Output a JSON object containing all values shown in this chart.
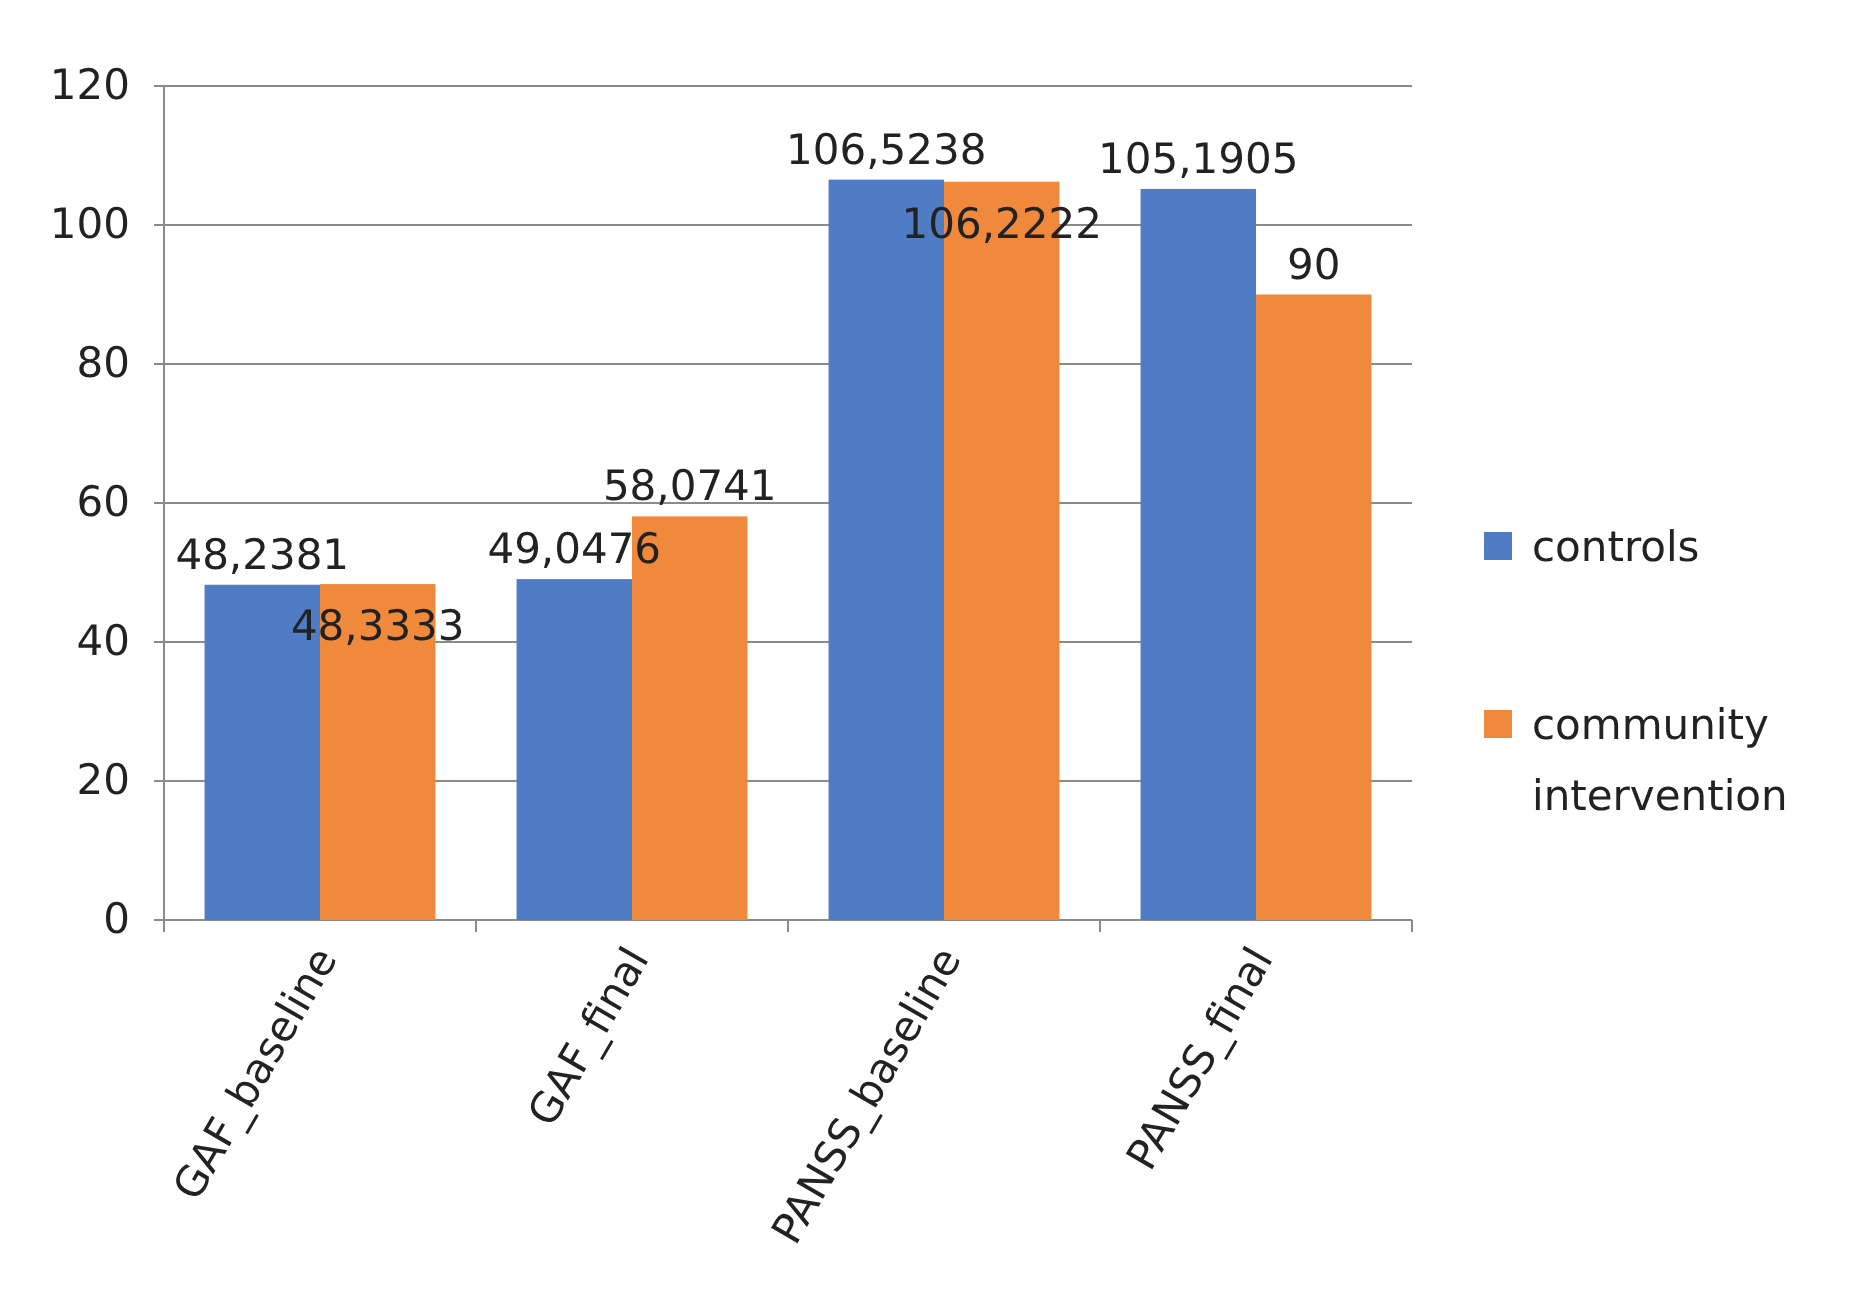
{
  "chart_data": {
    "type": "bar",
    "categories": [
      "GAF_baseline",
      "GAF_final",
      "PANSS_baseline",
      "PANSS_final"
    ],
    "series": [
      {
        "name": "controls",
        "color": "#4f7cc4",
        "values": [
          48.2381,
          49.0476,
          106.5238,
          105.1905
        ],
        "value_labels": [
          "48,2381",
          "49,0476",
          "106,5238",
          "105,1905"
        ]
      },
      {
        "name": "community intervention",
        "color": "#f0893b",
        "values": [
          48.3333,
          58.0741,
          106.2222,
          90
        ],
        "value_labels": [
          "48,3333",
          "58,0741",
          "106,2222",
          "90"
        ]
      }
    ],
    "ylim": [
      0,
      120
    ],
    "yticks": [
      0,
      20,
      40,
      60,
      80,
      100,
      120
    ],
    "grid": "y",
    "legend": "right"
  }
}
